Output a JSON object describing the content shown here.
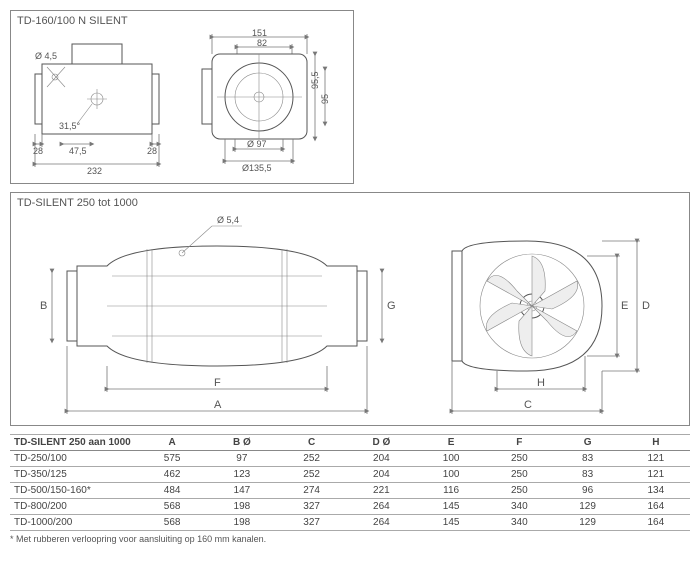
{
  "top_box": {
    "title": "TD-160/100 N SILENT",
    "dims": {
      "hole": "Ø 4,5",
      "width_total": "232",
      "left_flange": "28",
      "right_flange": "28",
      "mid_offset": "47,5",
      "side_top": "151",
      "side_inner": "82",
      "height": "95,5",
      "inner_h": "95",
      "angle": "31,5°",
      "d_inner": "Ø 97",
      "d_outer": "Ø135,5"
    }
  },
  "mid_box": {
    "title": "TD-SILENT 250 tot 1000",
    "hole": "Ø 5,4",
    "labels": {
      "A": "A",
      "B": "B",
      "C": "C",
      "D": "D",
      "E": "E",
      "F": "F",
      "G": "G",
      "H": "H"
    }
  },
  "table": {
    "title": "TD-SILENT 250 aan 1000",
    "columns": [
      "",
      "A",
      "B Ø",
      "C",
      "D Ø",
      "E",
      "F",
      "G",
      "H"
    ],
    "rows": [
      [
        "TD-250/100",
        "575",
        "97",
        "252",
        "204",
        "100",
        "250",
        "83",
        "121"
      ],
      [
        "TD-350/125",
        "462",
        "123",
        "252",
        "204",
        "100",
        "250",
        "83",
        "121"
      ],
      [
        "TD-500/150-160*",
        "484",
        "147",
        "274",
        "221",
        "116",
        "250",
        "96",
        "134"
      ],
      [
        "TD-800/200",
        "568",
        "198",
        "327",
        "264",
        "145",
        "340",
        "129",
        "164"
      ],
      [
        "TD-1000/200",
        "568",
        "198",
        "327",
        "264",
        "145",
        "340",
        "129",
        "164"
      ]
    ],
    "footnote": "* Met rubberen verloopring voor aansluiting op 160 mm kanalen."
  },
  "colors": {
    "stroke": "#555",
    "dim": "#777",
    "text": "#555"
  }
}
